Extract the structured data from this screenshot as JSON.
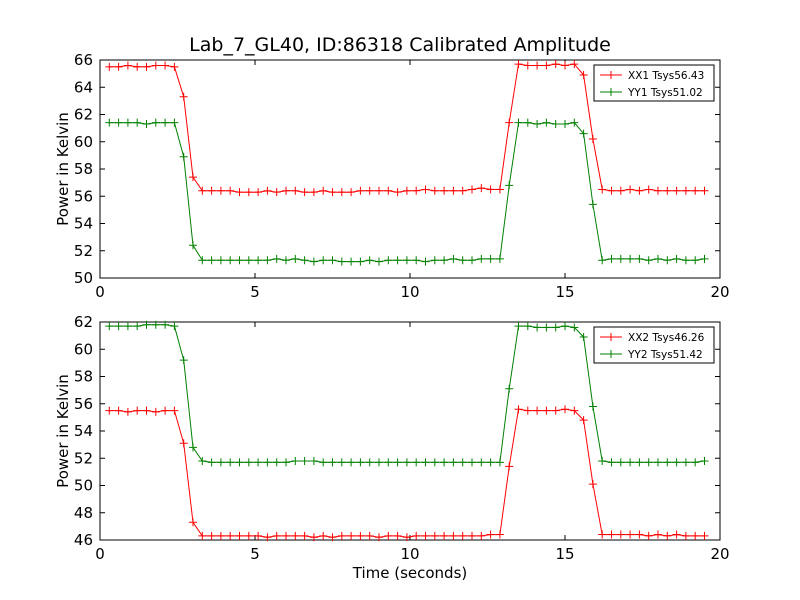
{
  "figure": {
    "title": "Lab_7_GL40, ID:86318 Calibrated Amplitude"
  },
  "chart_data": [
    {
      "type": "line",
      "xlim": [
        0,
        20
      ],
      "ylim": [
        50,
        66
      ],
      "xticks": [
        "0",
        "5",
        "10",
        "15",
        "20"
      ],
      "yticks": [
        "50",
        "52",
        "54",
        "56",
        "58",
        "60",
        "62",
        "64",
        "66"
      ],
      "xlabel": "",
      "ylabel": "Power in Kelvin",
      "legend_position": "top-right",
      "grid": false,
      "series": [
        {
          "name": "XX1 Tsys56.43",
          "color": "#ff0000",
          "x": [
            0.3,
            0.6,
            0.9,
            1.2,
            1.5,
            1.8,
            2.1,
            2.4,
            2.7,
            3.0,
            3.3,
            3.6,
            3.9,
            4.2,
            4.5,
            4.8,
            5.1,
            5.4,
            5.7,
            6.0,
            6.3,
            6.6,
            6.9,
            7.2,
            7.5,
            7.8,
            8.1,
            8.4,
            8.7,
            9.0,
            9.3,
            9.6,
            9.9,
            10.2,
            10.5,
            10.8,
            11.1,
            11.4,
            11.7,
            12.0,
            12.3,
            12.6,
            12.9,
            13.2,
            13.5,
            13.8,
            14.1,
            14.4,
            14.7,
            15.0,
            15.3,
            15.6,
            15.9,
            16.2,
            16.5,
            16.8,
            17.1,
            17.4,
            17.7,
            18.0,
            18.3,
            18.6,
            18.9,
            19.2,
            19.5
          ],
          "values": [
            65.5,
            65.5,
            65.6,
            65.5,
            65.5,
            65.6,
            65.6,
            65.5,
            63.3,
            57.4,
            56.4,
            56.4,
            56.4,
            56.4,
            56.3,
            56.3,
            56.3,
            56.4,
            56.3,
            56.4,
            56.4,
            56.3,
            56.3,
            56.4,
            56.3,
            56.3,
            56.3,
            56.4,
            56.4,
            56.4,
            56.4,
            56.3,
            56.4,
            56.4,
            56.5,
            56.4,
            56.4,
            56.4,
            56.4,
            56.5,
            56.6,
            56.5,
            56.5,
            61.4,
            65.7,
            65.6,
            65.6,
            65.6,
            65.7,
            65.6,
            65.7,
            64.9,
            60.2,
            56.5,
            56.4,
            56.4,
            56.5,
            56.4,
            56.5,
            56.4,
            56.4,
            56.4,
            56.4,
            56.4,
            56.4
          ]
        },
        {
          "name": "YY1 Tsys51.02",
          "color": "#008000",
          "x": [
            0.3,
            0.6,
            0.9,
            1.2,
            1.5,
            1.8,
            2.1,
            2.4,
            2.7,
            3.0,
            3.3,
            3.6,
            3.9,
            4.2,
            4.5,
            4.8,
            5.1,
            5.4,
            5.7,
            6.0,
            6.3,
            6.6,
            6.9,
            7.2,
            7.5,
            7.8,
            8.1,
            8.4,
            8.7,
            9.0,
            9.3,
            9.6,
            9.9,
            10.2,
            10.5,
            10.8,
            11.1,
            11.4,
            11.7,
            12.0,
            12.3,
            12.6,
            12.9,
            13.2,
            13.5,
            13.8,
            14.1,
            14.4,
            14.7,
            15.0,
            15.3,
            15.6,
            15.9,
            16.2,
            16.5,
            16.8,
            17.1,
            17.4,
            17.7,
            18.0,
            18.3,
            18.6,
            18.9,
            19.2,
            19.5
          ],
          "values": [
            61.4,
            61.4,
            61.4,
            61.4,
            61.3,
            61.4,
            61.4,
            61.4,
            58.9,
            52.4,
            51.3,
            51.3,
            51.3,
            51.3,
            51.3,
            51.3,
            51.3,
            51.3,
            51.4,
            51.3,
            51.4,
            51.3,
            51.2,
            51.3,
            51.3,
            51.2,
            51.2,
            51.2,
            51.3,
            51.2,
            51.3,
            51.3,
            51.3,
            51.3,
            51.2,
            51.3,
            51.3,
            51.4,
            51.3,
            51.3,
            51.4,
            51.4,
            51.4,
            56.8,
            61.4,
            61.4,
            61.3,
            61.4,
            61.3,
            61.3,
            61.4,
            60.6,
            55.4,
            51.3,
            51.4,
            51.4,
            51.4,
            51.4,
            51.3,
            51.4,
            51.3,
            51.4,
            51.3,
            51.3,
            51.4
          ]
        }
      ]
    },
    {
      "type": "line",
      "xlim": [
        0,
        20
      ],
      "ylim": [
        46,
        62
      ],
      "xticks": [
        "0",
        "5",
        "10",
        "15",
        "20"
      ],
      "yticks": [
        "46",
        "48",
        "50",
        "52",
        "54",
        "56",
        "58",
        "60",
        "62"
      ],
      "xlabel": "Time (seconds)",
      "ylabel": "Power in Kelvin",
      "legend_position": "top-right",
      "grid": false,
      "series": [
        {
          "name": "XX2 Tsys46.26",
          "color": "#ff0000",
          "x": [
            0.3,
            0.6,
            0.9,
            1.2,
            1.5,
            1.8,
            2.1,
            2.4,
            2.7,
            3.0,
            3.3,
            3.6,
            3.9,
            4.2,
            4.5,
            4.8,
            5.1,
            5.4,
            5.7,
            6.0,
            6.3,
            6.6,
            6.9,
            7.2,
            7.5,
            7.8,
            8.1,
            8.4,
            8.7,
            9.0,
            9.3,
            9.6,
            9.9,
            10.2,
            10.5,
            10.8,
            11.1,
            11.4,
            11.7,
            12.0,
            12.3,
            12.6,
            12.9,
            13.2,
            13.5,
            13.8,
            14.1,
            14.4,
            14.7,
            15.0,
            15.3,
            15.6,
            15.9,
            16.2,
            16.5,
            16.8,
            17.1,
            17.4,
            17.7,
            18.0,
            18.3,
            18.6,
            18.9,
            19.2,
            19.5
          ],
          "values": [
            55.5,
            55.5,
            55.4,
            55.5,
            55.5,
            55.4,
            55.5,
            55.5,
            53.1,
            47.3,
            46.3,
            46.3,
            46.3,
            46.3,
            46.3,
            46.3,
            46.3,
            46.2,
            46.3,
            46.3,
            46.3,
            46.3,
            46.2,
            46.3,
            46.2,
            46.3,
            46.3,
            46.3,
            46.3,
            46.2,
            46.3,
            46.3,
            46.2,
            46.3,
            46.3,
            46.3,
            46.3,
            46.3,
            46.3,
            46.3,
            46.3,
            46.4,
            46.4,
            51.4,
            55.6,
            55.5,
            55.5,
            55.5,
            55.5,
            55.6,
            55.5,
            54.8,
            50.1,
            46.4,
            46.4,
            46.4,
            46.4,
            46.4,
            46.3,
            46.4,
            46.3,
            46.4,
            46.3,
            46.3,
            46.3
          ]
        },
        {
          "name": "YY2 Tsys51.42",
          "color": "#008000",
          "x": [
            0.3,
            0.6,
            0.9,
            1.2,
            1.5,
            1.8,
            2.1,
            2.4,
            2.7,
            3.0,
            3.3,
            3.6,
            3.9,
            4.2,
            4.5,
            4.8,
            5.1,
            5.4,
            5.7,
            6.0,
            6.3,
            6.6,
            6.9,
            7.2,
            7.5,
            7.8,
            8.1,
            8.4,
            8.7,
            9.0,
            9.3,
            9.6,
            9.9,
            10.2,
            10.5,
            10.8,
            11.1,
            11.4,
            11.7,
            12.0,
            12.3,
            12.6,
            12.9,
            13.2,
            13.5,
            13.8,
            14.1,
            14.4,
            14.7,
            15.0,
            15.3,
            15.6,
            15.9,
            16.2,
            16.5,
            16.8,
            17.1,
            17.4,
            17.7,
            18.0,
            18.3,
            18.6,
            18.9,
            19.2,
            19.5
          ],
          "values": [
            61.7,
            61.7,
            61.7,
            61.7,
            61.8,
            61.8,
            61.8,
            61.7,
            59.2,
            52.8,
            51.8,
            51.7,
            51.7,
            51.7,
            51.7,
            51.7,
            51.7,
            51.7,
            51.7,
            51.7,
            51.8,
            51.8,
            51.8,
            51.7,
            51.7,
            51.7,
            51.7,
            51.7,
            51.7,
            51.7,
            51.7,
            51.7,
            51.7,
            51.7,
            51.7,
            51.7,
            51.7,
            51.7,
            51.7,
            51.7,
            51.7,
            51.7,
            51.7,
            57.1,
            61.7,
            61.7,
            61.6,
            61.6,
            61.6,
            61.7,
            61.6,
            60.9,
            55.8,
            51.8,
            51.7,
            51.7,
            51.7,
            51.7,
            51.7,
            51.7,
            51.7,
            51.7,
            51.7,
            51.7,
            51.8
          ]
        }
      ]
    }
  ]
}
